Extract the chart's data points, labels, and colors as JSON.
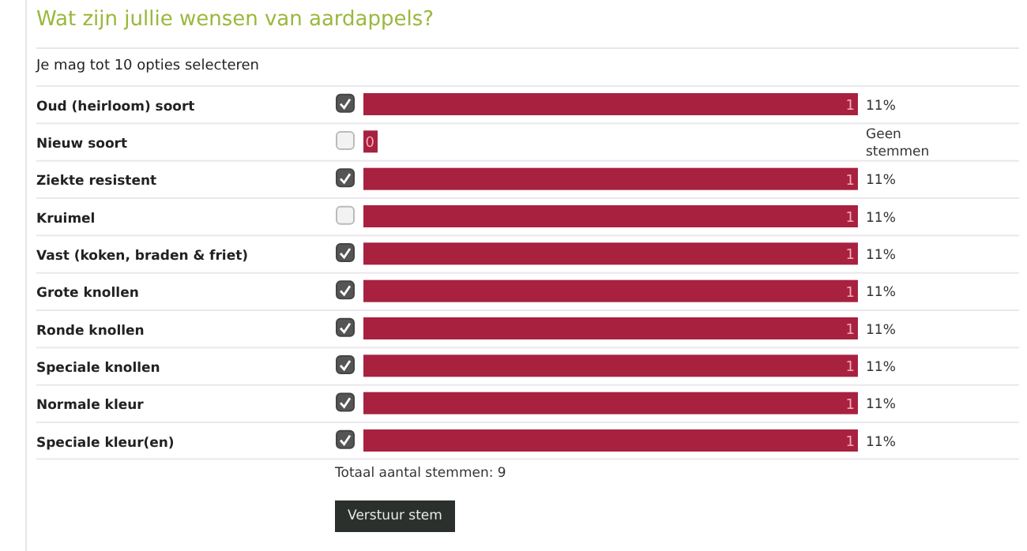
{
  "chart_data": {
    "type": "bar",
    "orientation": "horizontal",
    "title": "Wat zijn jullie wensen van aardappels?",
    "subtitle": "Je mag tot 10 opties selecteren",
    "categories": [
      "Oud (heirloom) soort",
      "Nieuw soort",
      "Ziekte resistent",
      "Kruimel",
      "Vast (koken, braden & friet)",
      "Grote knollen",
      "Ronde knollen",
      "Speciale knollen",
      "Normale kleur",
      "Speciale kleur(en)"
    ],
    "values": [
      1,
      0,
      1,
      1,
      1,
      1,
      1,
      1,
      1,
      1
    ],
    "color": "#a8213f",
    "data_labels": true,
    "tick_labels": "y",
    "annotations": [
      "11%",
      "Geen stemmen",
      "11%",
      "11%",
      "11%",
      "11%",
      "11%",
      "11%",
      "11%",
      "11%",
      "Totaal aantal stemmen: 9",
      "Verstuur stem"
    ]
  }
}
